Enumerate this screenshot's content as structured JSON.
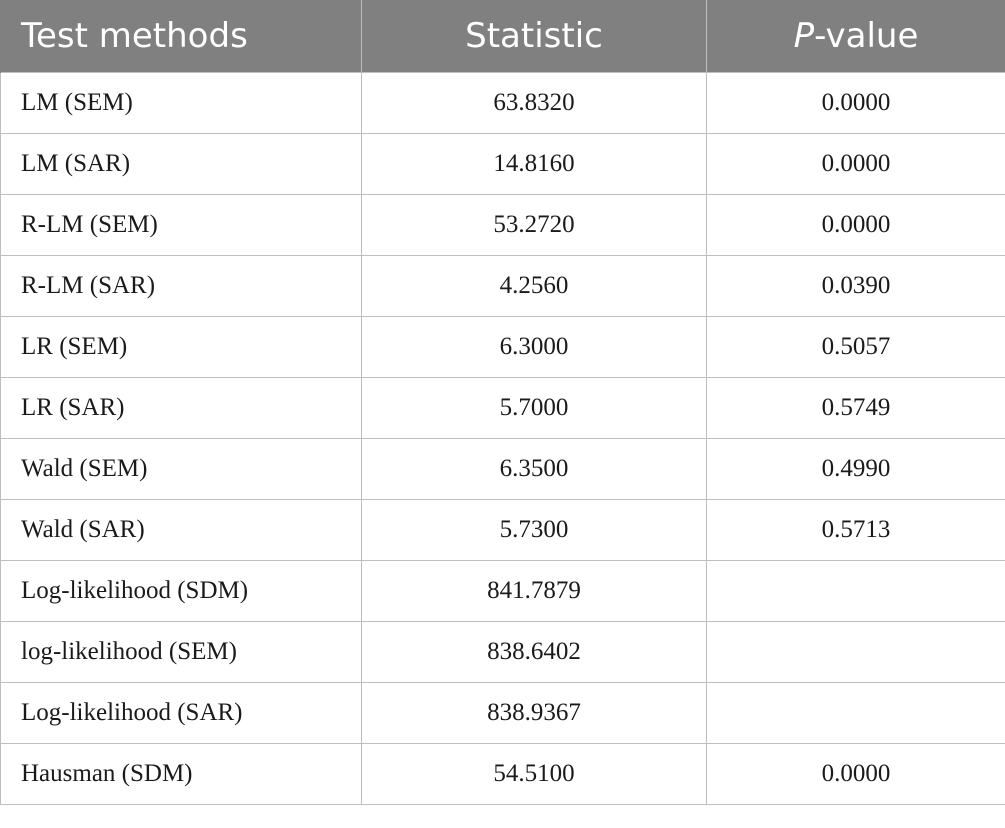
{
  "header": {
    "col1": "Test methods",
    "col2": "Statistic",
    "col3_italic": "P",
    "col3_rest": "-value"
  },
  "rows": [
    {
      "method": "LM (SEM)",
      "statistic": "63.8320",
      "pvalue": "0.0000"
    },
    {
      "method": "LM (SAR)",
      "statistic": "14.8160",
      "pvalue": "0.0000"
    },
    {
      "method": "R-LM (SEM)",
      "statistic": "53.2720",
      "pvalue": "0.0000"
    },
    {
      "method": "R-LM (SAR)",
      "statistic": "4.2560",
      "pvalue": "0.0390"
    },
    {
      "method": "LR (SEM)",
      "statistic": "6.3000",
      "pvalue": "0.5057"
    },
    {
      "method": "LR (SAR)",
      "statistic": "5.7000",
      "pvalue": "0.5749"
    },
    {
      "method": "Wald (SEM)",
      "statistic": "6.3500",
      "pvalue": "0.4990"
    },
    {
      "method": "Wald (SAR)",
      "statistic": "5.7300",
      "pvalue": "0.5713"
    },
    {
      "method": "Log-likelihood (SDM)",
      "statistic": "841.7879",
      "pvalue": ""
    },
    {
      "method": "log-likelihood (SEM)",
      "statistic": "838.6402",
      "pvalue": ""
    },
    {
      "method": "Log-likelihood (SAR)",
      "statistic": "838.9367",
      "pvalue": ""
    },
    {
      "method": "Hausman (SDM)",
      "statistic": "54.5100",
      "pvalue": "0.0000"
    }
  ]
}
